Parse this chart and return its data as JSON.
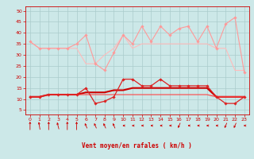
{
  "background_color": "#cce8e8",
  "grid_color": "#aacccc",
  "xlabel": "Vent moyen/en rafales ( km/h )",
  "xlabel_color": "#cc0000",
  "tick_color": "#cc0000",
  "x_ticks": [
    0,
    1,
    2,
    3,
    4,
    5,
    6,
    7,
    8,
    9,
    10,
    11,
    12,
    13,
    14,
    15,
    16,
    17,
    18,
    19,
    20,
    21,
    22,
    23
  ],
  "ylim": [
    3,
    52
  ],
  "xlim": [
    -0.5,
    23.5
  ],
  "yticks": [
    5,
    10,
    15,
    20,
    25,
    30,
    35,
    40,
    45,
    50
  ],
  "line1": {
    "x": [
      0,
      1,
      2,
      3,
      4,
      5,
      6,
      7,
      8,
      9,
      10,
      11,
      12,
      13,
      14,
      15,
      16,
      17,
      18,
      19,
      20,
      21,
      22,
      23
    ],
    "y": [
      36,
      33,
      33,
      33,
      33,
      35,
      39,
      26,
      23,
      31,
      39,
      35,
      43,
      36,
      43,
      39,
      42,
      43,
      36,
      43,
      33,
      44,
      47,
      22
    ],
    "color": "#ff9999",
    "lw": 0.8,
    "marker": "D",
    "ms": 1.8
  },
  "line2": {
    "x": [
      0,
      1,
      2,
      3,
      4,
      5,
      6,
      7,
      8,
      9,
      10,
      11,
      12,
      13,
      14,
      15,
      16,
      17,
      18,
      19,
      20,
      21,
      22,
      23
    ],
    "y": [
      36,
      33,
      33,
      33,
      33,
      33,
      26,
      26,
      30,
      33,
      39,
      33,
      35,
      35,
      35,
      35,
      35,
      35,
      35,
      35,
      33,
      33,
      23,
      23
    ],
    "color": "#ffbbbb",
    "lw": 0.8,
    "marker": null,
    "ms": 0
  },
  "line3": {
    "x": [
      0,
      1,
      2,
      3,
      4,
      5,
      6,
      7,
      8,
      9,
      10,
      11,
      12,
      13,
      14,
      15,
      16,
      17,
      18,
      19,
      20,
      21,
      22,
      23
    ],
    "y": [
      11,
      11,
      12,
      12,
      12,
      12,
      15,
      8,
      9,
      11,
      19,
      19,
      16,
      16,
      19,
      16,
      16,
      16,
      16,
      16,
      11,
      8,
      8,
      11
    ],
    "color": "#dd2222",
    "lw": 0.9,
    "marker": "D",
    "ms": 1.8
  },
  "line4": {
    "x": [
      0,
      1,
      2,
      3,
      4,
      5,
      6,
      7,
      8,
      9,
      10,
      11,
      12,
      13,
      14,
      15,
      16,
      17,
      18,
      19,
      20,
      21,
      22,
      23
    ],
    "y": [
      11,
      11,
      12,
      12,
      12,
      12,
      13,
      13,
      13,
      14,
      14,
      15,
      15,
      15,
      15,
      15,
      15,
      15,
      15,
      15,
      11,
      11,
      11,
      11
    ],
    "color": "#cc0000",
    "lw": 1.5,
    "marker": null,
    "ms": 0
  },
  "line5": {
    "x": [
      0,
      1,
      2,
      3,
      4,
      5,
      6,
      7,
      8,
      9,
      10,
      11,
      12,
      13,
      14,
      15,
      16,
      17,
      18,
      19,
      20,
      21,
      22,
      23
    ],
    "y": [
      11,
      11,
      12,
      12,
      12,
      12,
      12,
      12,
      12,
      12,
      12,
      12,
      12,
      12,
      12,
      12,
      12,
      12,
      12,
      12,
      11,
      11,
      11,
      11
    ],
    "color": "#ff4444",
    "lw": 0.8,
    "marker": null,
    "ms": 0
  },
  "arrow_angles": [
    180,
    200,
    180,
    210,
    180,
    180,
    225,
    225,
    225,
    225,
    270,
    270,
    270,
    270,
    270,
    270,
    315,
    270,
    270,
    270,
    270,
    315,
    315,
    270
  ],
  "arrow_color": "#cc0000"
}
